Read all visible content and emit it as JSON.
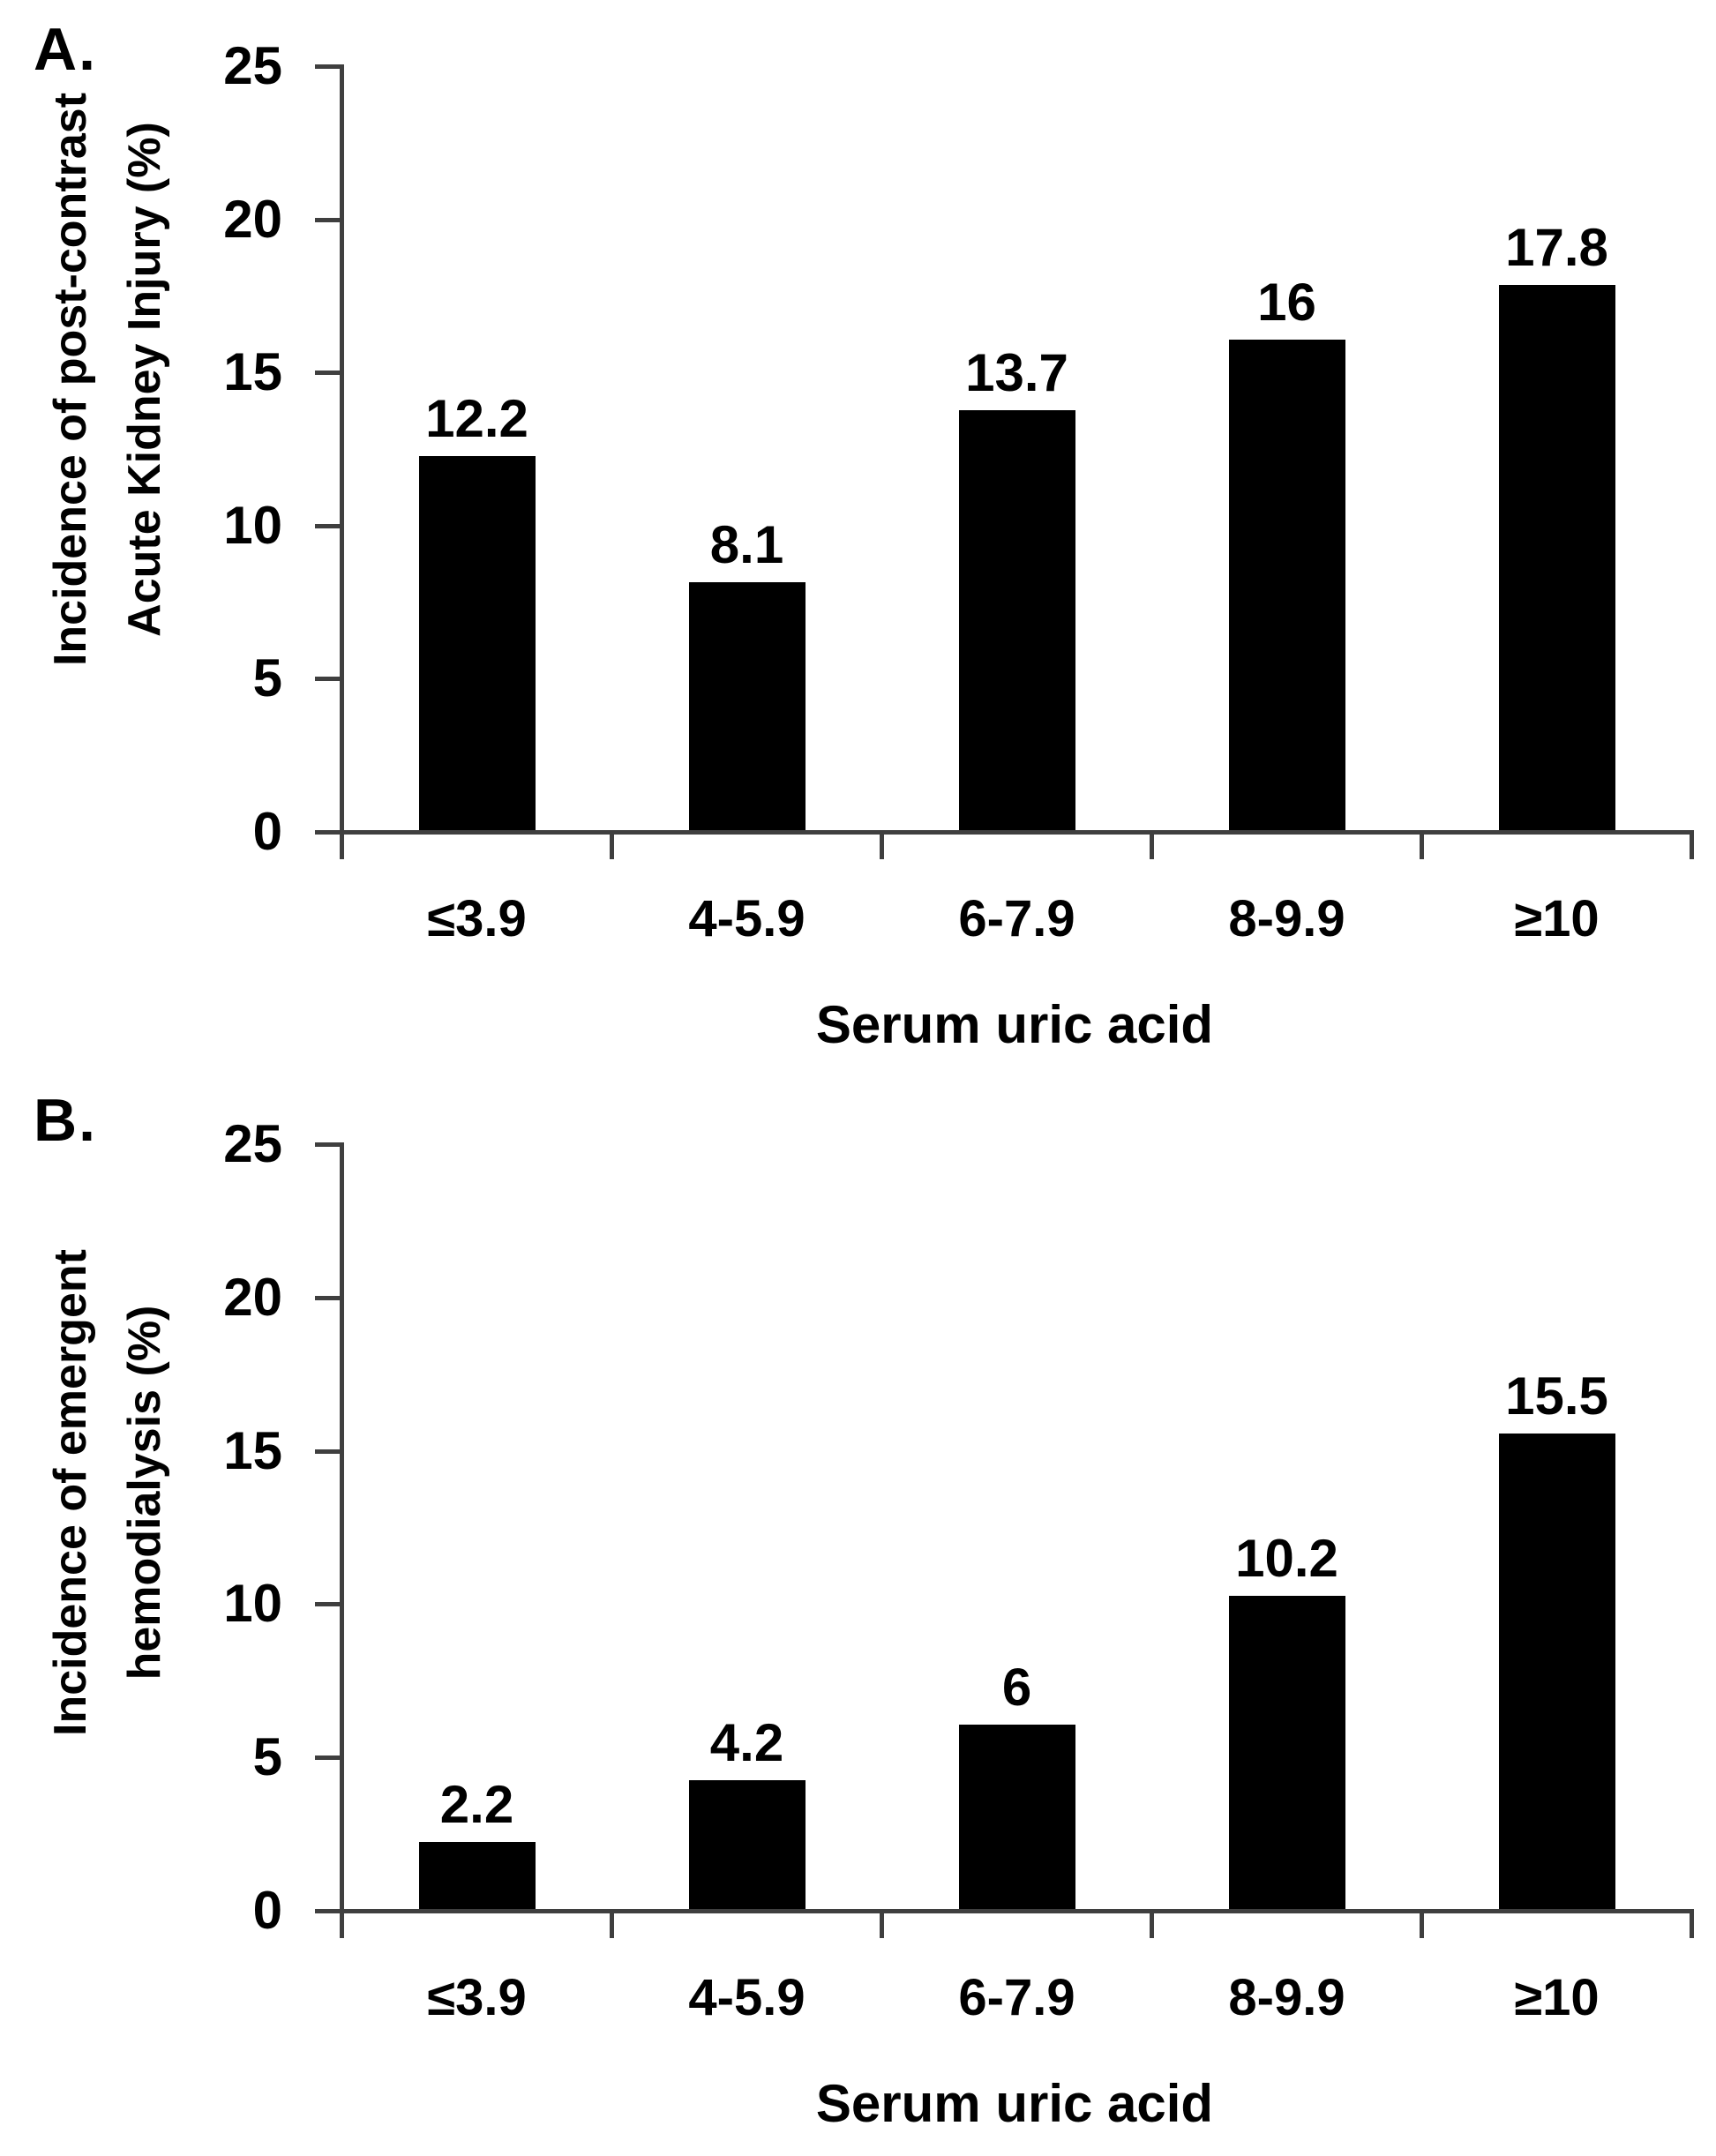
{
  "figure": {
    "background_color": "#ffffff",
    "bar_color": "#000000",
    "axis_color": "#3f3f3f",
    "text_color": "#000000"
  },
  "chart_data": [
    {
      "type": "bar",
      "panel": "A.",
      "ylabel_lines": [
        "Incidence of post-contrast",
        "Acute Kidney Injury (%)"
      ],
      "xlabel": "Serum uric acid",
      "categories": [
        "≤3.9",
        "4-5.9",
        "6-7.9",
        "8-9.9",
        "≥10"
      ],
      "values": [
        12.2,
        8.1,
        13.7,
        16,
        17.8
      ],
      "value_labels": [
        "12.2",
        "8.1",
        "13.7",
        "16",
        "17.8"
      ],
      "yticks": [
        0,
        5,
        10,
        15,
        20,
        25
      ],
      "ylim": [
        0,
        25
      ],
      "grid": false,
      "legend": false
    },
    {
      "type": "bar",
      "panel": "B.",
      "ylabel_lines": [
        "Incidence of emergent",
        "hemodialysis (%)"
      ],
      "xlabel": "Serum uric acid",
      "categories": [
        "≤3.9",
        "4-5.9",
        "6-7.9",
        "8-9.9",
        "≥10"
      ],
      "values": [
        2.2,
        4.2,
        6,
        10.2,
        15.5
      ],
      "value_labels": [
        "2.2",
        "4.2",
        "6",
        "10.2",
        "15.5"
      ],
      "yticks": [
        0,
        5,
        10,
        15,
        20,
        25
      ],
      "ylim": [
        0,
        25
      ],
      "grid": false,
      "legend": false
    }
  ]
}
